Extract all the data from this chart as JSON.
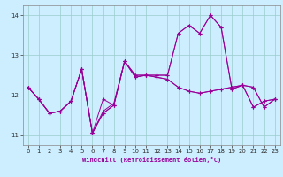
{
  "background_color": "#cceeff",
  "line_color": "#990099",
  "grid_color": "#99cccc",
  "xlabel": "Windchill (Refroidissement éolien,°C)",
  "xlim": [
    -0.5,
    23.5
  ],
  "ylim": [
    10.75,
    14.25
  ],
  "yticks": [
    11,
    12,
    13,
    14
  ],
  "xticks": [
    0,
    1,
    2,
    3,
    4,
    5,
    6,
    7,
    8,
    9,
    10,
    11,
    12,
    13,
    14,
    15,
    16,
    17,
    18,
    19,
    20,
    21,
    22,
    23
  ],
  "lines": [
    [
      12.2,
      11.9,
      11.55,
      11.6,
      11.85,
      12.65,
      11.05,
      11.55,
      11.75,
      12.85,
      12.45,
      12.5,
      12.45,
      12.4,
      12.2,
      12.1,
      12.05,
      12.1,
      12.15,
      12.2,
      12.25,
      11.7,
      11.85,
      11.9
    ],
    [
      12.2,
      11.9,
      11.55,
      11.6,
      11.85,
      12.65,
      11.05,
      11.6,
      11.8,
      12.85,
      12.45,
      12.5,
      12.45,
      12.4,
      12.2,
      12.1,
      12.05,
      12.1,
      12.15,
      12.2,
      12.25,
      11.7,
      11.85,
      11.9
    ],
    [
      12.2,
      11.9,
      11.55,
      11.6,
      11.85,
      12.65,
      11.05,
      11.55,
      11.75,
      12.85,
      12.5,
      12.5,
      12.5,
      12.5,
      13.55,
      13.75,
      13.55,
      14.0,
      13.7,
      12.15,
      12.25,
      12.2,
      11.7,
      11.9
    ],
    [
      12.2,
      11.9,
      11.55,
      11.6,
      11.85,
      12.65,
      11.05,
      11.9,
      11.75,
      12.85,
      12.5,
      12.5,
      12.5,
      12.5,
      13.55,
      13.75,
      13.55,
      14.0,
      13.7,
      12.15,
      12.25,
      12.2,
      11.7,
      11.9
    ]
  ]
}
